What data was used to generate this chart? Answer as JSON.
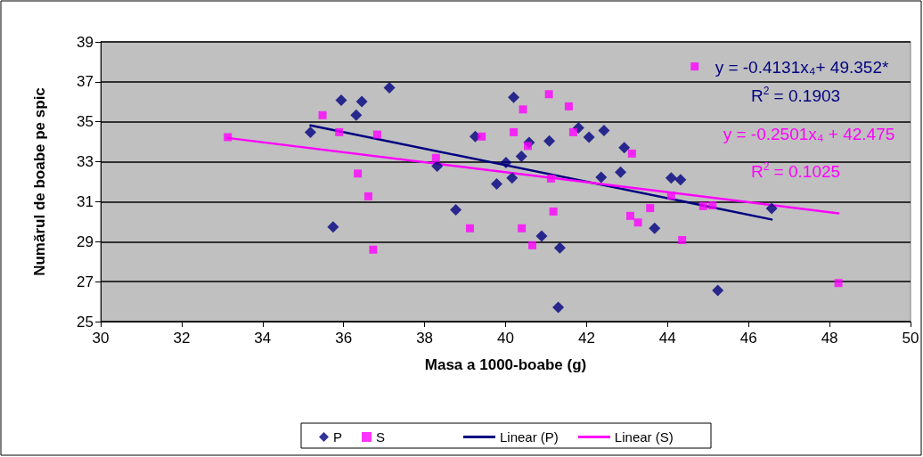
{
  "chart_data": {
    "type": "scatter",
    "xlabel": "Masa a 1000-boabe (g)",
    "ylabel": "Numărul de boabe pe spic",
    "xlim": [
      30,
      50
    ],
    "xticks": [
      30,
      32,
      34,
      36,
      38,
      40,
      42,
      44,
      46,
      48,
      50
    ],
    "ylim": [
      25,
      39
    ],
    "yticks": [
      25,
      27,
      29,
      31,
      33,
      35,
      37,
      39
    ],
    "grid": "y",
    "legend": "bottom",
    "series": [
      {
        "name": "P",
        "marker": "diamond",
        "color": "#000080",
        "x": [
          35.18,
          35.74,
          35.94,
          36.31,
          36.45,
          37.13,
          38.31,
          38.77,
          39.25,
          39.78,
          40.01,
          40.16,
          40.2,
          40.39,
          40.58,
          40.89,
          41.08,
          41.3,
          41.34,
          41.8,
          42.06,
          42.36,
          42.43,
          42.84,
          42.93,
          43.68,
          44.09,
          44.32,
          45.24,
          46.57
        ],
        "values": [
          34.48,
          29.74,
          36.08,
          35.33,
          36.01,
          36.7,
          32.78,
          30.59,
          34.26,
          31.89,
          32.96,
          32.19,
          36.23,
          33.27,
          33.96,
          29.28,
          34.04,
          25.71,
          28.69,
          34.7,
          34.23,
          32.22,
          34.56,
          32.48,
          33.7,
          29.67,
          32.19,
          32.1,
          26.56,
          30.66
        ]
      },
      {
        "name": "S",
        "marker": "square",
        "color": "#ff00ff",
        "x": [
          33.14,
          35.48,
          35.89,
          36.35,
          36.61,
          36.73,
          36.83,
          38.28,
          39.12,
          39.41,
          40.2,
          40.4,
          40.43,
          40.55,
          40.66,
          41.07,
          41.12,
          41.18,
          41.56,
          41.67,
          43.08,
          43.12,
          43.27,
          43.57,
          44.09,
          44.36,
          44.67,
          44.88,
          45.11,
          48.22
        ],
        "values": [
          34.23,
          35.33,
          34.48,
          32.41,
          31.27,
          28.6,
          34.36,
          33.19,
          29.67,
          34.26,
          34.48,
          29.67,
          35.62,
          33.79,
          28.82,
          36.38,
          32.16,
          30.51,
          35.77,
          34.48,
          30.29,
          33.41,
          29.96,
          30.68,
          31.3,
          29.08,
          37.77,
          30.78,
          30.82,
          26.93
        ]
      },
      {
        "name": "Linear (P)",
        "type": "line",
        "marker": "none",
        "line_style": "solid",
        "color": "#000080",
        "x": [
          35.18,
          46.57
        ],
        "values": [
          34.82,
          30.11
        ]
      },
      {
        "name": "Linear (S)",
        "type": "line",
        "marker": "none",
        "line_style": "solid",
        "color": "#ff00ff",
        "x": [
          33.14,
          48.22
        ],
        "values": [
          34.19,
          30.42
        ]
      }
    ],
    "annotations": [
      "y = -0.4131x₄+ 49.352*",
      "R$^{2}$ = 0.1903",
      "y = -0.2501x₄ + 42.475",
      "R$^{2}$ = 0.1025"
    ]
  }
}
